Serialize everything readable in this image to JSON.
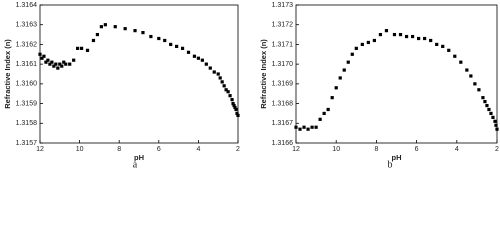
{
  "chart_data": [
    {
      "type": "scatter",
      "caption": "a",
      "x_label": "pH",
      "y_label": "Refractive Index (n)",
      "color": "#000000",
      "xlim": [
        12,
        2
      ],
      "xticks": [
        12,
        10,
        8,
        6,
        4,
        2
      ],
      "ylim": [
        1.3157,
        1.3164
      ],
      "yticks": [
        1.3157,
        1.3158,
        1.3159,
        {
          "value": 1.316,
          "label": "1.3160"
        },
        1.3161,
        1.3162,
        1.3163,
        1.3164
      ],
      "x": [
        12,
        11.9,
        11.8,
        11.7,
        11.6,
        11.5,
        11.4,
        11.3,
        11.2,
        11.1,
        11,
        10.9,
        10.8,
        10.7,
        10.5,
        10.3,
        10.1,
        9.9,
        9.6,
        9.3,
        9.1,
        8.9,
        8.7,
        8.2,
        7.7,
        7.2,
        6.8,
        6.4,
        6.0,
        5.7,
        5.4,
        5.1,
        4.8,
        4.5,
        4.2,
        4.0,
        3.8,
        3.6,
        3.4,
        3.2,
        3.0,
        2.9,
        2.8,
        2.7,
        2.6,
        2.5,
        2.4,
        2.3,
        2.25,
        2.2,
        2.15,
        2.1,
        2.05,
        2.0
      ],
      "values": [
        1.31615,
        1.31613,
        1.31614,
        1.31611,
        1.31612,
        1.3161,
        1.31611,
        1.31609,
        1.3161,
        1.31608,
        1.3161,
        1.31609,
        1.31611,
        1.3161,
        1.3161,
        1.31612,
        1.31618,
        1.31618,
        1.31617,
        1.31622,
        1.31625,
        1.31629,
        1.3163,
        1.31629,
        1.31628,
        1.31627,
        1.31626,
        1.31624,
        1.31623,
        1.31622,
        1.3162,
        1.31619,
        1.31618,
        1.31616,
        1.31614,
        1.31613,
        1.31612,
        1.3161,
        1.31608,
        1.31606,
        1.31605,
        1.31603,
        1.31601,
        1.31599,
        1.31597,
        1.31596,
        1.31594,
        1.31592,
        1.3159,
        1.31589,
        1.31588,
        1.31587,
        1.31585,
        1.31584
      ]
    },
    {
      "type": "scatter",
      "caption": "b",
      "x_label": "pH",
      "y_label": "Refractive Index (n)",
      "color": "#000000",
      "xlim": [
        12,
        2
      ],
      "xticks": [
        12,
        10,
        8,
        6,
        4,
        2
      ],
      "ylim": [
        1.3166,
        1.3173
      ],
      "yticks": [
        1.3166,
        1.3167,
        1.3168,
        1.3169,
        {
          "value": 1.317,
          "label": "1.3170"
        },
        1.3171,
        1.3172,
        1.3173
      ],
      "x": [
        12,
        11.8,
        11.6,
        11.4,
        11.2,
        11.0,
        10.8,
        10.6,
        10.4,
        10.2,
        10.0,
        9.8,
        9.6,
        9.4,
        9.2,
        9.0,
        8.7,
        8.4,
        8.1,
        7.8,
        7.5,
        7.1,
        6.8,
        6.5,
        6.2,
        5.9,
        5.6,
        5.3,
        5.0,
        4.7,
        4.4,
        4.1,
        3.8,
        3.5,
        3.3,
        3.1,
        2.9,
        2.7,
        2.6,
        2.5,
        2.4,
        2.3,
        2.2,
        2.1,
        2.05,
        2.0
      ],
      "values": [
        1.31668,
        1.31667,
        1.31668,
        1.31667,
        1.31668,
        1.31668,
        1.31672,
        1.31675,
        1.31677,
        1.31683,
        1.31688,
        1.31693,
        1.31697,
        1.31701,
        1.31705,
        1.31708,
        1.3171,
        1.31711,
        1.31712,
        1.31715,
        1.31717,
        1.31715,
        1.31715,
        1.31714,
        1.31714,
        1.31713,
        1.31713,
        1.31712,
        1.3171,
        1.31709,
        1.31707,
        1.31704,
        1.31701,
        1.31697,
        1.31694,
        1.3169,
        1.31687,
        1.31683,
        1.31681,
        1.31679,
        1.31677,
        1.31675,
        1.31673,
        1.31671,
        1.31669,
        1.31667
      ]
    }
  ]
}
